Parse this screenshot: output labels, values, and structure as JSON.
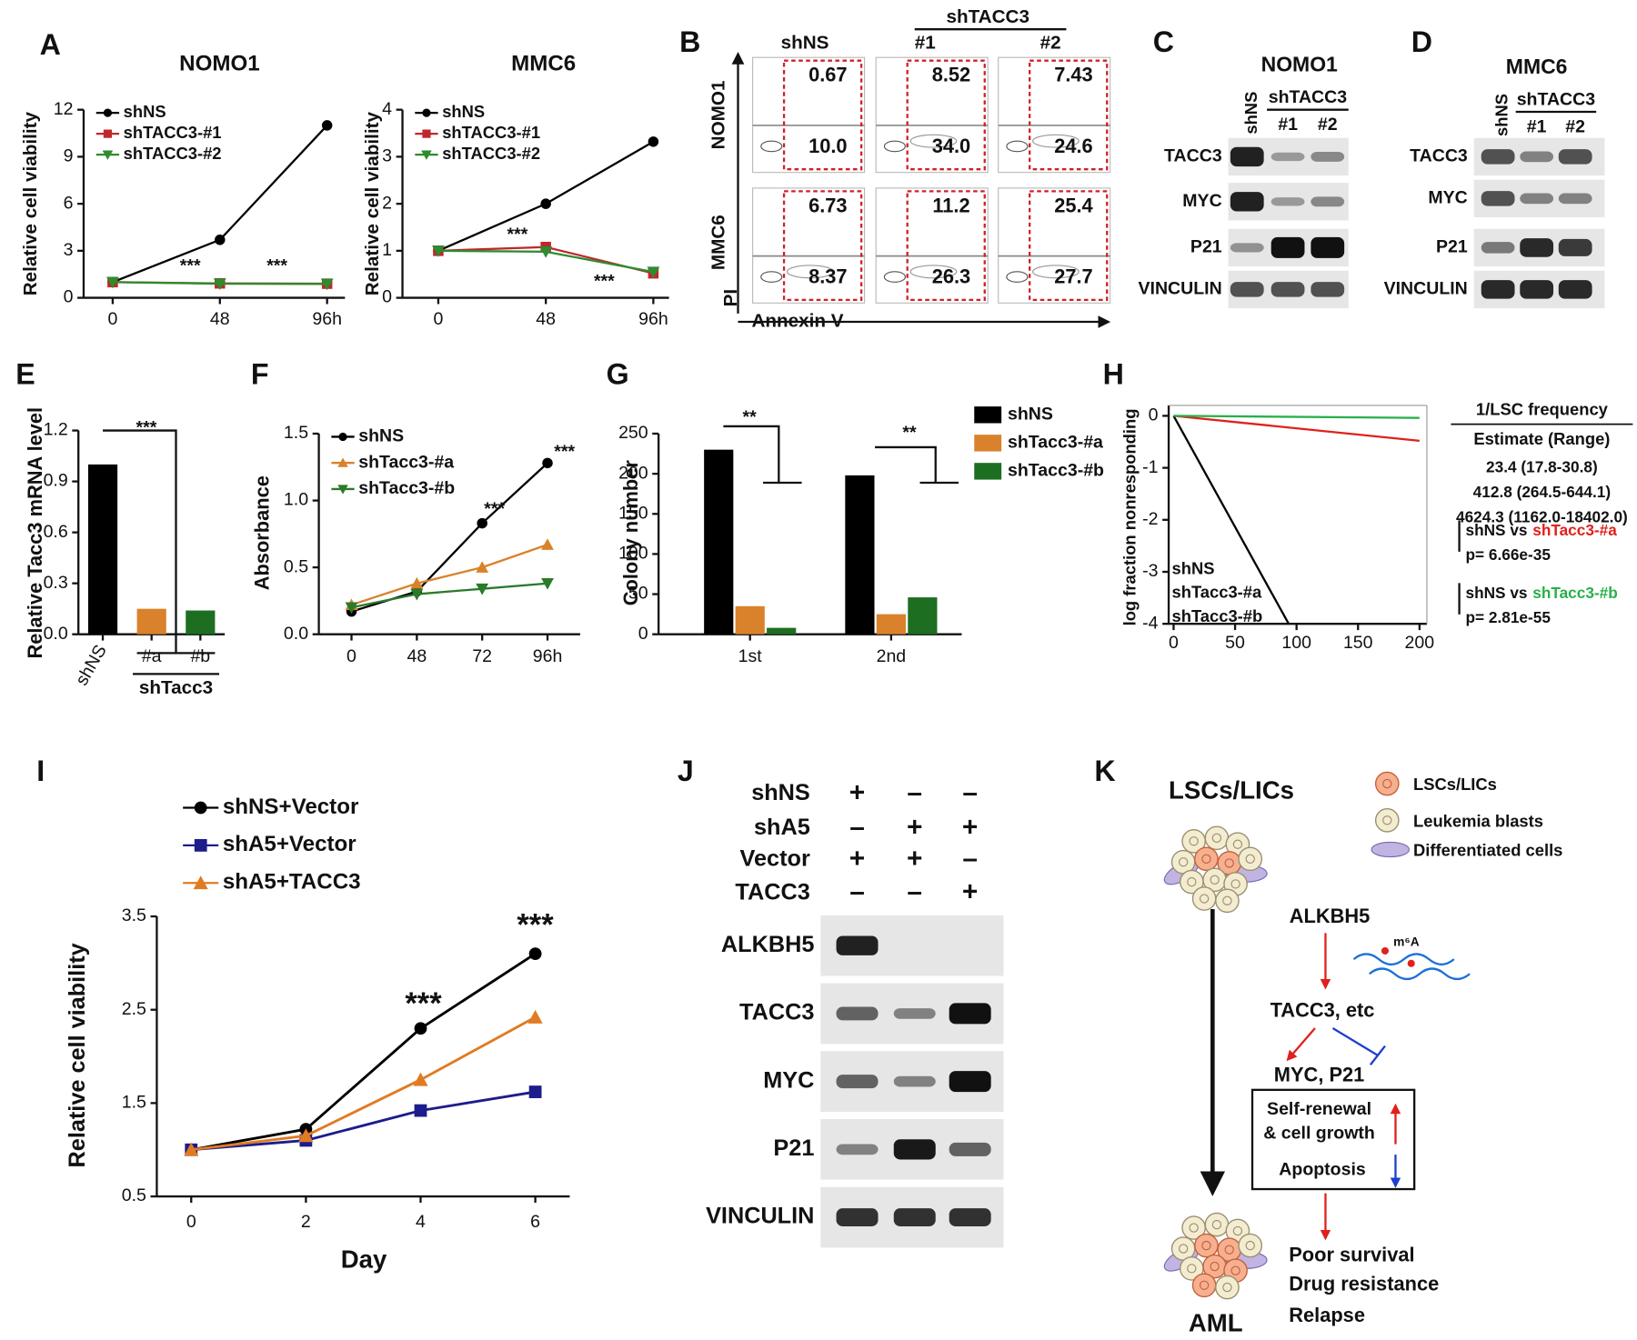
{
  "panel_letters": [
    "A",
    "B",
    "C",
    "D",
    "E",
    "F",
    "G",
    "H",
    "I",
    "J",
    "K"
  ],
  "chart_data": [
    {
      "type": "line",
      "title": "NOMO1",
      "y_label": "Relative cell viability",
      "x": [
        0,
        48,
        96
      ],
      "xlim": [
        -13,
        104
      ],
      "xticks": [
        0,
        48,
        {
          "value": 96,
          "label": "96h"
        }
      ],
      "ylim": [
        0,
        12
      ],
      "yticks": [
        0,
        3,
        6,
        9,
        12
      ],
      "legend": "upper left",
      "grid": false,
      "series": [
        {
          "name": "shNS",
          "color": "#000000",
          "marker": "circle",
          "values": [
            1,
            3.7,
            11
          ]
        },
        {
          "name": "shTACC3-#1",
          "color": "#c0272d",
          "marker": "square",
          "values": [
            1,
            0.92,
            0.9
          ]
        },
        {
          "name": "shTACC3-#2",
          "color": "#2e8b2e",
          "marker": "triangle-down",
          "values": [
            1,
            0.9,
            0.88
          ]
        }
      ],
      "annotations": [
        "***",
        "***"
      ]
    },
    {
      "type": "line",
      "title": "MMC6",
      "y_label": "Relative cell viability",
      "x": [
        0,
        48,
        96
      ],
      "xlim": [
        -16,
        103
      ],
      "xticks": [
        0,
        48,
        {
          "value": 96,
          "label": "96h"
        }
      ],
      "ylim": [
        0,
        4
      ],
      "yticks": [
        0,
        1,
        2,
        3,
        4
      ],
      "legend": "upper left",
      "grid": false,
      "series": [
        {
          "name": "shNS",
          "color": "#000000",
          "marker": "circle",
          "values": [
            1,
            2,
            3.32
          ]
        },
        {
          "name": "shTACC3-#1",
          "color": "#c0272d",
          "marker": "square",
          "values": [
            1,
            1.08,
            0.52
          ]
        },
        {
          "name": "shTACC3-#2",
          "color": "#2e8b2e",
          "marker": "triangle-down",
          "values": [
            1,
            0.98,
            0.55
          ]
        }
      ],
      "annotations": [
        "***",
        "***"
      ]
    },
    {
      "type": "bar",
      "y_label": "Relative Tacc3 mRNA level",
      "categories": [
        "shNS",
        "#a",
        "#b"
      ],
      "group_label": "shTacc3",
      "values": [
        1,
        0.15,
        0.14
      ],
      "colors": [
        "#000000",
        "#d9822b",
        "#1d6e21"
      ],
      "ylim": [
        0,
        1.2
      ],
      "yticks": [
        {
          "value": 0,
          "label": "0.0"
        },
        0.3,
        0.6,
        0.9,
        1.2
      ],
      "grid": false,
      "annotations": [
        "***"
      ]
    },
    {
      "type": "line",
      "y_label": "Absorbance",
      "categories": [
        "0",
        "48",
        "72",
        "96h"
      ],
      "ylim": [
        0,
        1.5
      ],
      "yticks": [
        {
          "value": 0,
          "label": "0.0"
        },
        0.5,
        {
          "value": 1,
          "label": "1.0"
        },
        1.5
      ],
      "legend": "upper left",
      "grid": false,
      "series": [
        {
          "name": "shNS",
          "color": "#000000",
          "marker": "circle",
          "values": [
            0.17,
            0.32,
            0.83,
            1.28
          ]
        },
        {
          "name": "shTacc3-#a",
          "color": "#d9822b",
          "marker": "triangle",
          "values": [
            0.22,
            0.38,
            0.5,
            0.67
          ]
        },
        {
          "name": "shTacc3-#b",
          "color": "#2a7a2a",
          "marker": "triangle-down",
          "values": [
            0.2,
            0.3,
            0.34,
            0.38
          ]
        }
      ],
      "annotations": [
        "***",
        "***"
      ]
    },
    {
      "type": "bar",
      "y_label": "Colony number",
      "categories": [
        "1st",
        "2nd"
      ],
      "ylim": [
        0,
        250
      ],
      "yticks": [
        0,
        50,
        100,
        150,
        200,
        250
      ],
      "legend": "right",
      "grid": false,
      "series": [
        {
          "name": "shNS",
          "color": "#000000",
          "values": [
            230,
            198
          ]
        },
        {
          "name": "shTacc3-#a",
          "color": "#d9822b",
          "values": [
            35,
            25
          ]
        },
        {
          "name": "shTacc3-#b",
          "color": "#1d6e21",
          "values": [
            8,
            46
          ]
        }
      ],
      "annotations": [
        "**",
        "**"
      ]
    },
    {
      "type": "line",
      "y_label": "log fraction nonresponding",
      "xlim": [
        -4,
        206
      ],
      "xticks": [
        0,
        50,
        100,
        150,
        200
      ],
      "ylim": [
        -4,
        0.2
      ],
      "yticks": [
        0,
        -1,
        -2,
        -3,
        -4
      ],
      "legend": "lower left",
      "grid": false,
      "series": [
        {
          "name": "shNS",
          "color": "#000000",
          "marker": "none",
          "x": [
            0,
            93.6
          ],
          "values": [
            0,
            -4
          ]
        },
        {
          "name": "shTacc3-#a",
          "color": "#e0201c",
          "marker": "none",
          "x": [
            0,
            200
          ],
          "values": [
            0,
            -0.48
          ]
        },
        {
          "name": "shTacc3-#b",
          "color": "#29b04a",
          "marker": "none",
          "x": [
            0,
            200
          ],
          "values": [
            0,
            -0.04
          ]
        }
      ],
      "table": {
        "title": "1/LSC frequency",
        "header": "Estimate (Range)",
        "estimates": [
          "23.4 (17.8-30.8)",
          "412.8 (264.5-644.1)",
          "4624.3 (1162.0-18402.0)"
        ],
        "tests": [
          {
            "text": "shNS vs",
            "group": "shTacc3-#a",
            "p": "p= 6.66e-35"
          },
          {
            "text": "shNS vs",
            "group": "shTacc3-#b",
            "p": "p= 2.81e-55"
          }
        ]
      }
    },
    {
      "type": "line",
      "x_label": "Day",
      "y_label": "Relative cell viability",
      "x": [
        0,
        2,
        4,
        6
      ],
      "xlim": [
        -0.6,
        6.6
      ],
      "xticks": [
        0,
        2,
        4,
        6
      ],
      "ylim": [
        0.5,
        3.5
      ],
      "yticks": [
        0.5,
        1.5,
        2.5,
        3.5
      ],
      "legend": "top",
      "grid": false,
      "series": [
        {
          "name": "shNS+Vector",
          "color": "#000000",
          "marker": "circle",
          "values": [
            1,
            1.22,
            2.3,
            3.1
          ]
        },
        {
          "name": "shA5+Vector",
          "color": "#1c1c8c",
          "marker": "square",
          "values": [
            1,
            1.1,
            1.42,
            1.62
          ]
        },
        {
          "name": "shA5+TACC3",
          "color": "#e07b22",
          "marker": "triangle",
          "values": [
            1,
            1.15,
            1.75,
            2.42
          ]
        }
      ],
      "annotations": [
        "***",
        "***"
      ]
    }
  ],
  "flow": {
    "columns": [
      "shNS",
      "#1",
      "#2"
    ],
    "group": "shTACC3",
    "rows": [
      "NOMO1",
      "MMC6"
    ],
    "y_axis": "PI",
    "x_axis": "Annexin V",
    "values": [
      [
        [
          "0.67",
          "10.0"
        ],
        [
          "8.52",
          "34.0"
        ],
        [
          "7.43",
          "24.6"
        ]
      ],
      [
        [
          "6.73",
          "8.37"
        ],
        [
          "11.2",
          "26.3"
        ],
        [
          "25.4",
          "27.7"
        ]
      ]
    ]
  },
  "blot_c": {
    "title": "NOMO1",
    "lanes": [
      "shNS",
      "#1",
      "#2"
    ],
    "group": "shTACC3",
    "proteins": [
      "TACC3",
      "MYC",
      "P21",
      "VINCULIN"
    ]
  },
  "blot_d": {
    "title": "MMC6",
    "lanes": [
      "shNS",
      "#1",
      "#2"
    ],
    "group": "shTACC3",
    "proteins": [
      "TACC3",
      "MYC",
      "P21",
      "VINCULIN"
    ]
  },
  "blot_j": {
    "conditions": [
      {
        "label": "shNS",
        "signs": [
          "+",
          "–",
          "–"
        ]
      },
      {
        "label": "shA5",
        "signs": [
          "–",
          "+",
          "+"
        ]
      },
      {
        "label": "Vector",
        "signs": [
          "+",
          "+",
          "–"
        ]
      },
      {
        "label": "TACC3",
        "signs": [
          "–",
          "–",
          "+"
        ]
      }
    ],
    "proteins": [
      "ALKBH5",
      "TACC3",
      "MYC",
      "P21",
      "VINCULIN"
    ]
  },
  "model": {
    "top": "LSCs/LICs",
    "bottom": "AML",
    "legend": [
      "LSCs/LICs",
      "Leukemia blasts",
      "Differentiated cells"
    ],
    "nodes": [
      "ALKBH5",
      "TACC3, etc",
      "MYC, P21"
    ],
    "mark": "m⁶A",
    "box": [
      "Self-renewal",
      "& cell growth",
      "Apoptosis"
    ],
    "outcomes": [
      "Poor survival",
      "Drug resistance",
      "Relapse"
    ]
  }
}
